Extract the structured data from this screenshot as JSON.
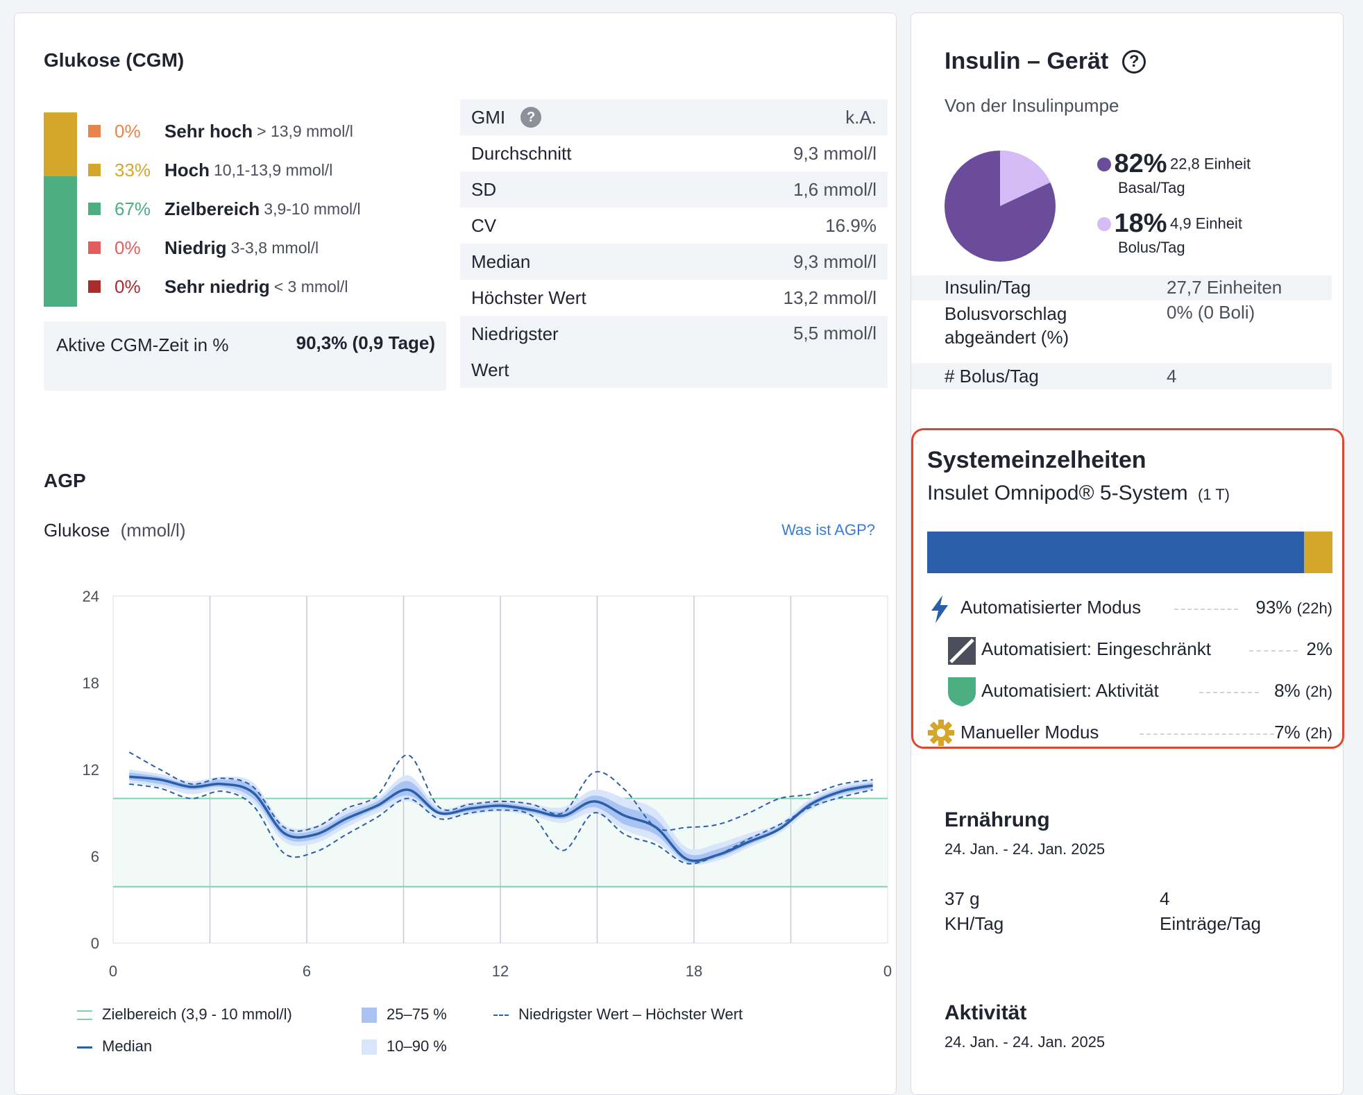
{
  "glucose": {
    "title": "Glukose (CGM)",
    "ranges": [
      {
        "pct": "0%",
        "label": "Sehr hoch",
        "range": "> 13,9 mmol/l",
        "color": "#e8834a",
        "fraction": 0.0
      },
      {
        "pct": "33%",
        "label": "Hoch",
        "range": "10,1-13,9 mmol/l",
        "color": "#d4a62a",
        "fraction": 0.33
      },
      {
        "pct": "67%",
        "label": "Zielbereich",
        "range": "3,9-10 mmol/l",
        "color": "#4caf82",
        "fraction": 0.67
      },
      {
        "pct": "0%",
        "label": "Niedrig",
        "range": "3-3,8 mmol/l",
        "color": "#e35d5d",
        "fraction": 0.0
      },
      {
        "pct": "0%",
        "label": "Sehr niedrig",
        "range": "< 3 mmol/l",
        "color": "#a92b2b",
        "fraction": 0.0
      }
    ],
    "active_label": "Aktive CGM-Zeit in %",
    "active_value": "90,3% (0,9 Tage)",
    "stats": [
      {
        "label": "GMI",
        "value": "k.A."
      },
      {
        "label": "Durchschnitt",
        "value": "9,3 mmol/l"
      },
      {
        "label": "SD",
        "value": "1,6 mmol/l"
      },
      {
        "label": "CV",
        "value": "16.9%"
      },
      {
        "label": "Median",
        "value": "9,3 mmol/l"
      },
      {
        "label": "Höchster Wert",
        "value": "13,2 mmol/l"
      },
      {
        "label": "Niedrigster Wert",
        "value": "5,5 mmol/l"
      }
    ]
  },
  "agp": {
    "title": "AGP",
    "ylabel_bold": "Glukose",
    "ylabel_unit": "(mmol/l)",
    "link": "Was ist AGP?",
    "legend": {
      "target": "Zielbereich (3,9 - 10 mmol/l)",
      "median": "Median",
      "iqr": "25–75 %",
      "p10_90": "10–90 %",
      "minmax": "Niedrigster Wert – Höchster Wert"
    }
  },
  "chart_data": {
    "type": "line",
    "x_tick_labels": [
      "0",
      "6",
      "12",
      "18",
      "0"
    ],
    "y_ticks": [
      0,
      6,
      12,
      18,
      24
    ],
    "ylim": [
      0,
      24
    ],
    "xlim": [
      0,
      24
    ],
    "target_range": [
      3.9,
      10
    ],
    "x": [
      0,
      1,
      2,
      3,
      4,
      5,
      6,
      7,
      8,
      9,
      10,
      11,
      12,
      13,
      14,
      15,
      16,
      17,
      18,
      19,
      20,
      21,
      22,
      23,
      24
    ],
    "series": [
      {
        "name": "Median",
        "values": [
          11.5,
          11.3,
          10.8,
          11.0,
          10.4,
          7.6,
          7.5,
          8.6,
          9.5,
          10.6,
          9.0,
          9.3,
          9.5,
          9.2,
          8.8,
          9.8,
          8.8,
          8.0,
          5.8,
          6.1,
          7.0,
          7.9,
          9.6,
          10.5,
          10.9
        ]
      },
      {
        "name": "Niedrigster Wert",
        "values": [
          11.0,
          10.7,
          10.0,
          10.5,
          9.5,
          6.2,
          6.3,
          7.5,
          8.7,
          10.0,
          8.6,
          9.0,
          9.2,
          8.8,
          6.4,
          9.0,
          7.5,
          6.8,
          5.5,
          6.1,
          7.2,
          8.2,
          9.4,
          10.1,
          10.6
        ]
      },
      {
        "name": "Höchster Wert",
        "values": [
          13.2,
          12.0,
          11.0,
          11.4,
          10.8,
          8.0,
          8.0,
          9.3,
          10.2,
          13.0,
          9.4,
          9.6,
          9.8,
          9.6,
          9.0,
          11.8,
          10.6,
          8.0,
          8.0,
          8.2,
          9.0,
          10.0,
          10.3,
          11.0,
          11.3
        ]
      }
    ],
    "p25_75": {
      "lower": [
        11.3,
        11.0,
        10.6,
        10.8,
        10.0,
        7.3,
        7.2,
        8.3,
        9.3,
        10.2,
        8.9,
        9.1,
        9.3,
        9.0,
        8.6,
        9.4,
        8.2,
        7.5,
        5.6,
        5.9,
        6.8,
        7.8,
        9.4,
        10.3,
        10.7
      ],
      "upper": [
        11.8,
        11.5,
        11.0,
        11.3,
        10.8,
        7.9,
        7.8,
        8.9,
        9.8,
        11.2,
        9.2,
        9.5,
        9.7,
        9.4,
        9.1,
        10.2,
        9.4,
        8.6,
        6.2,
        6.5,
        7.3,
        8.1,
        9.8,
        10.7,
        11.1
      ]
    },
    "p10_90": {
      "lower": [
        11.1,
        10.8,
        10.3,
        10.6,
        9.7,
        7.0,
        6.9,
        8.0,
        9.0,
        9.8,
        8.7,
        8.9,
        9.1,
        8.8,
        8.3,
        9.0,
        7.8,
        7.0,
        5.5,
        5.7,
        6.6,
        7.6,
        9.2,
        10.1,
        10.6
      ],
      "upper": [
        12.0,
        11.7,
        11.2,
        11.5,
        11.1,
        8.2,
        8.1,
        9.2,
        10.0,
        11.6,
        9.4,
        9.7,
        9.9,
        9.6,
        9.4,
        10.6,
        10.0,
        9.2,
        6.6,
        6.9,
        7.6,
        8.3,
        10.0,
        10.9,
        11.3
      ]
    }
  },
  "insulin": {
    "title": "Insulin – Gerät",
    "subtitle": "Von der Insulinpumpe",
    "basal": {
      "pct": "82%",
      "amount": "22,8 Einheit",
      "label": "Basal/Tag",
      "color": "#6b4c9a",
      "fraction": 0.82
    },
    "bolus": {
      "pct": "18%",
      "amount": "4,9 Einheit",
      "label": "Bolus/Tag",
      "color": "#d6bcf7",
      "fraction": 0.18
    },
    "rows": [
      {
        "label": "Insulin/Tag",
        "value": "27,7 Einheiten"
      },
      {
        "label": "Bolusvorschlag abgeändert (%)",
        "value": "0% (0 Boli)"
      },
      {
        "label": "# Bolus/Tag",
        "value": "4"
      }
    ]
  },
  "system": {
    "title": "Systemeinzelheiten",
    "device": "Insulet Omnipod® 5-System",
    "device_days": "(1 T)",
    "bar": {
      "auto_fraction": 0.93,
      "auto_color": "#2a5ea8",
      "manual_color": "#d4a62a"
    },
    "modes": [
      {
        "icon": "lightning-icon",
        "label": "Automatisierter Modus",
        "pct": "93%",
        "dur": "(22h)"
      },
      {
        "icon": "limited-icon",
        "label": "Automatisiert: Eingeschränkt",
        "pct": "2%",
        "dur": ""
      },
      {
        "icon": "shield-icon",
        "label": "Automatisiert: Aktivität",
        "pct": "8%",
        "dur": "(2h)"
      },
      {
        "icon": "gear-icon",
        "label": "Manueller Modus",
        "pct": "7%",
        "dur": "(2h)"
      }
    ]
  },
  "nutrition": {
    "title": "Ernährung",
    "date": "24. Jan. - 24. Jan. 2025",
    "carbs_value": "37 g",
    "carbs_label": "KH/Tag",
    "entries_value": "4",
    "entries_label": "Einträge/Tag"
  },
  "activity": {
    "title": "Aktivität",
    "date": "24. Jan. - 24. Jan. 2025"
  }
}
